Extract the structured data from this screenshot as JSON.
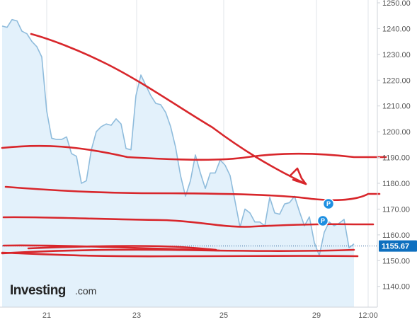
{
  "chart_data": {
    "type": "area",
    "x_tick_labels": [
      "21",
      "23",
      "25",
      "29",
      "12:00"
    ],
    "y_ticks": [
      1250,
      1240,
      1230,
      1220,
      1210,
      1200,
      1190,
      1180,
      1170,
      1160,
      1150,
      1140
    ],
    "y_tick_labels": [
      "1250.00",
      "1240.00",
      "1230.00",
      "1220.00",
      "1210.00",
      "1200.00",
      "1190.00",
      "1180.00",
      "1170.00",
      "1160.00",
      "1150.00",
      "1140.00"
    ],
    "ylim": [
      1134,
      1251
    ],
    "grid": "vertical",
    "last_price": 1155.67,
    "last_price_label": "1155.67",
    "series": [
      {
        "values": [
          1241,
          1240.5,
          1243.5,
          1243,
          1239,
          1238,
          1235,
          1233,
          1229,
          1208,
          1197.5,
          1197,
          1197,
          1198,
          1191.5,
          1190.5,
          1180,
          1181,
          1193,
          1200,
          1202,
          1203,
          1202.5,
          1205,
          1203,
          1193.5,
          1193,
          1214,
          1222,
          1218,
          1214,
          1211,
          1210.5,
          1207.5,
          1202,
          1194,
          1183,
          1175,
          1181,
          1191,
          1184,
          1178,
          1184,
          1184,
          1189,
          1187,
          1183,
          1173,
          1163,
          1170,
          1168.5,
          1165,
          1165,
          1163.5,
          1174.5,
          1168.5,
          1168,
          1172,
          1172.5,
          1175,
          1169,
          1163.5,
          1167,
          1157,
          1152,
          1161,
          1165,
          1163.5,
          1164.5,
          1166,
          1155,
          1156.5
        ]
      }
    ],
    "annotations": [
      {
        "type": "trend-arrow",
        "label": "red hand-drawn downward trendline with arrowhead"
      },
      {
        "type": "marker",
        "text": "P"
      },
      {
        "type": "marker",
        "text": "P"
      }
    ]
  },
  "branding": {
    "logo_main": "Investing",
    "logo_sub": ".com"
  },
  "colors": {
    "line": "#8fbcdc",
    "area_fill": "#e3f1fb",
    "annotation_red": "#d8262b",
    "marker_blue": "#1e8fe1",
    "price_tag_bg": "#0e6fbf",
    "grid": "#e2e5ea",
    "axis_text": "#555555"
  }
}
